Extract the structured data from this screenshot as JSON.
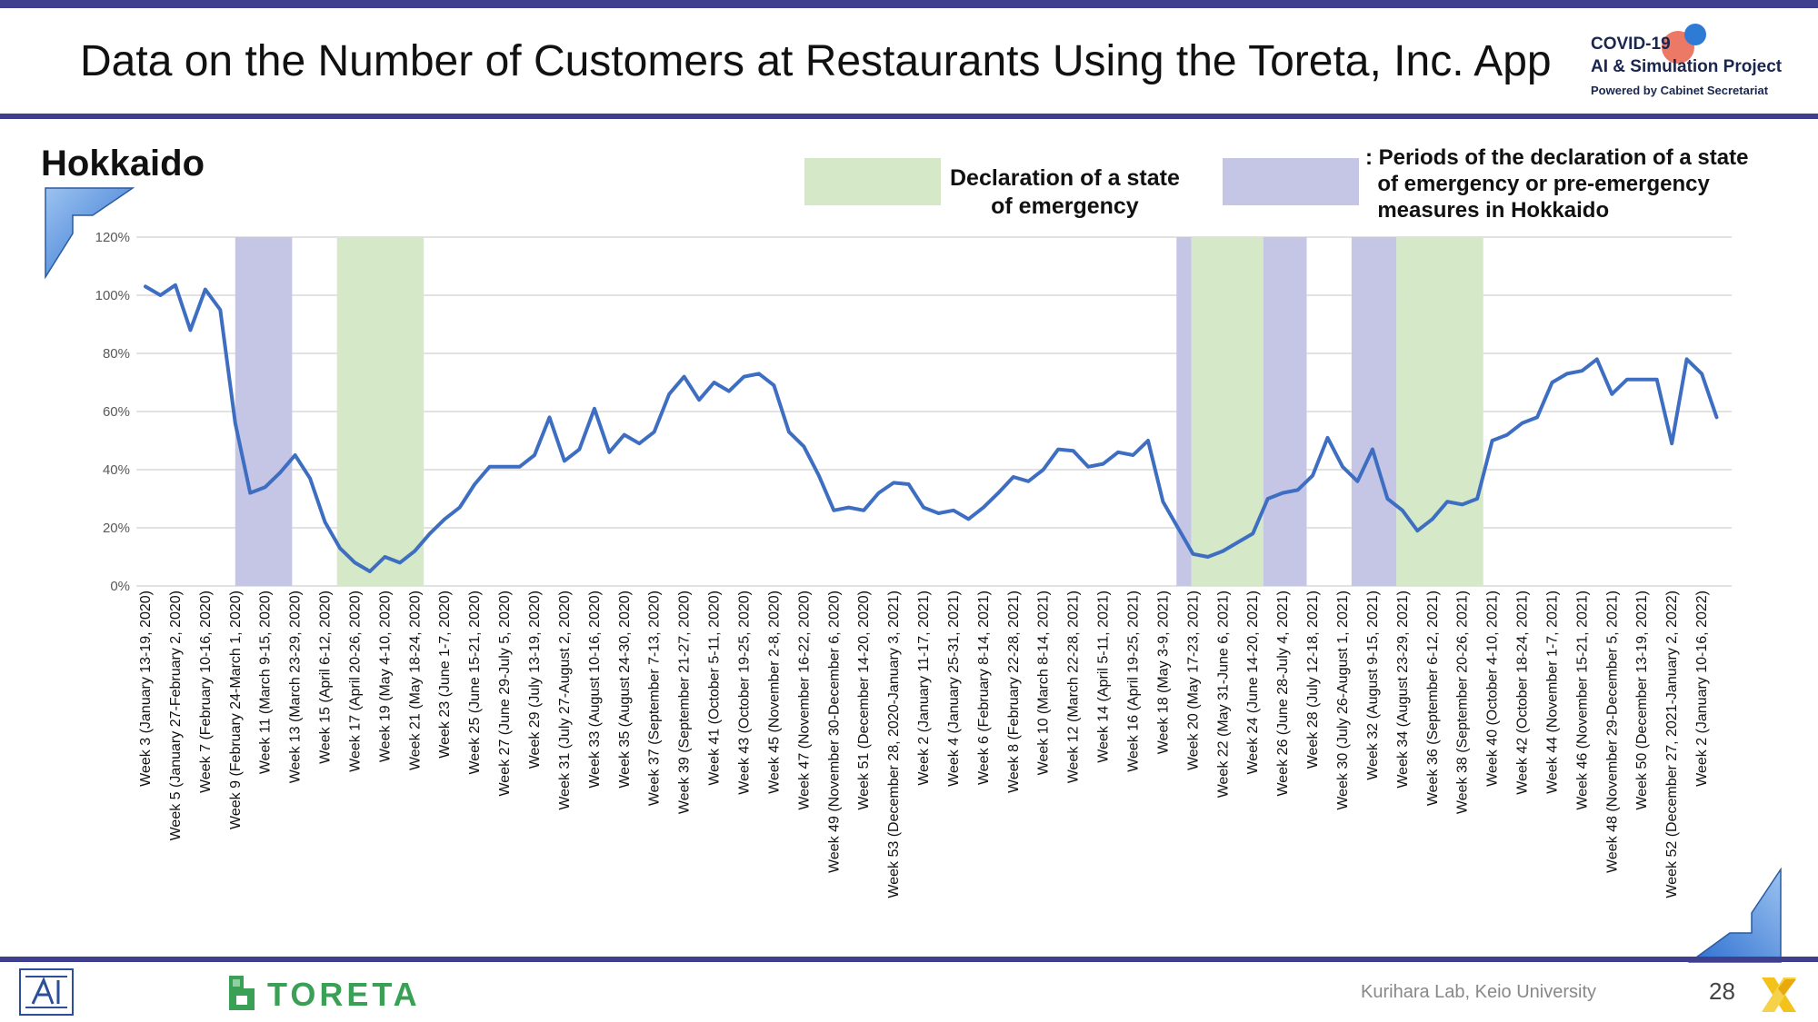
{
  "header": {
    "title": "Data on the Number of Customers at Restaurants Using the Toreta, Inc. App",
    "logo_line1": "COVID-19",
    "logo_line2": "AI & Simulation Project",
    "logo_line3": "Powered by Cabinet Secretariat"
  },
  "region": "Hokkaido",
  "legend": {
    "emergency": "Declaration of a state\nof emergency",
    "pre_emergency": ": Periods of the declaration of a state\n  of emergency or pre-emergency\n  measures in Hokkaido",
    "emergency_color": "#d5e8c8",
    "pre_emergency_color": "#c5c6e6"
  },
  "footer": {
    "toreta": "TORETA",
    "credit": "Kurihara Lab, Keio University",
    "page_number": "28"
  },
  "colors": {
    "line": "#3e6ec2",
    "accent": "#3e3f8e"
  },
  "chart_data": {
    "type": "line",
    "ylim": [
      0,
      1.2
    ],
    "yticks": [
      0,
      0.2,
      0.4,
      0.6,
      0.8,
      1.0,
      1.2
    ],
    "ytick_labels": [
      "0%",
      "20%",
      "40%",
      "60%",
      "80%",
      "100%",
      "120%"
    ],
    "grid": true,
    "x_index_range": [
      0,
      106
    ],
    "xtick_labels": [
      {
        "i": 0,
        "label": "Week 3 (January 13-19, 2020)"
      },
      {
        "i": 2,
        "label": "Week 5 (January 27-February 2, 2020)"
      },
      {
        "i": 4,
        "label": "Week 7 (February 10-16, 2020)"
      },
      {
        "i": 6,
        "label": "Week 9 (February 24-March 1, 2020)"
      },
      {
        "i": 8,
        "label": "Week 11 (March 9-15, 2020)"
      },
      {
        "i": 10,
        "label": "Week 13 (March 23-29, 2020)"
      },
      {
        "i": 12,
        "label": "Week 15 (April 6-12, 2020)"
      },
      {
        "i": 14,
        "label": "Week 17 (April 20-26, 2020)"
      },
      {
        "i": 16,
        "label": "Week 19 (May 4-10, 2020)"
      },
      {
        "i": 18,
        "label": "Week 21 (May 18-24, 2020)"
      },
      {
        "i": 20,
        "label": "Week 23 (June 1-7, 2020)"
      },
      {
        "i": 22,
        "label": "Week 25 (June 15-21, 2020)"
      },
      {
        "i": 24,
        "label": "Week 27 (June 29-July 5, 2020)"
      },
      {
        "i": 26,
        "label": "Week 29 (July 13-19, 2020)"
      },
      {
        "i": 28,
        "label": "Week 31 (July 27-August 2, 2020)"
      },
      {
        "i": 30,
        "label": "Week 33 (August 10-16, 2020)"
      },
      {
        "i": 32,
        "label": "Week 35 (August 24-30, 2020)"
      },
      {
        "i": 34,
        "label": "Week 37 (September 7-13, 2020)"
      },
      {
        "i": 36,
        "label": "Week 39 (September 21-27, 2020)"
      },
      {
        "i": 38,
        "label": "Week 41 (October 5-11, 2020)"
      },
      {
        "i": 40,
        "label": "Week 43 (October 19-25, 2020)"
      },
      {
        "i": 42,
        "label": "Week 45 (November 2-8, 2020)"
      },
      {
        "i": 44,
        "label": "Week 47 (November 16-22, 2020)"
      },
      {
        "i": 46,
        "label": "Week 49 (November 30-December 6, 2020)"
      },
      {
        "i": 48,
        "label": "Week 51 (December 14-20, 2020)"
      },
      {
        "i": 50,
        "label": "Week 53 (December 28, 2020-January 3, 2021)"
      },
      {
        "i": 52,
        "label": "Week 2 (January 11-17, 2021)"
      },
      {
        "i": 54,
        "label": "Week 4 (January 25-31, 2021)"
      },
      {
        "i": 56,
        "label": "Week 6 (February 8-14, 2021)"
      },
      {
        "i": 58,
        "label": "Week 8 (February 22-28, 2021)"
      },
      {
        "i": 60,
        "label": "Week 10 (March 8-14, 2021)"
      },
      {
        "i": 62,
        "label": "Week 12 (March 22-28, 2021)"
      },
      {
        "i": 64,
        "label": "Week 14 (April 5-11, 2021)"
      },
      {
        "i": 66,
        "label": "Week 16 (April 19-25, 2021)"
      },
      {
        "i": 68,
        "label": "Week 18 (May 3-9, 2021)"
      },
      {
        "i": 70,
        "label": "Week 20 (May 17-23, 2021)"
      },
      {
        "i": 72,
        "label": "Week 22 (May 31-June 6, 2021)"
      },
      {
        "i": 74,
        "label": "Week 24 (June 14-20, 2021)"
      },
      {
        "i": 76,
        "label": "Week 26 (June 28-July 4, 2021)"
      },
      {
        "i": 78,
        "label": "Week 28 (July 12-18, 2021)"
      },
      {
        "i": 80,
        "label": "Week 30 (July 26-August 1, 2021)"
      },
      {
        "i": 82,
        "label": "Week 32 (August 9-15, 2021)"
      },
      {
        "i": 84,
        "label": "Week 34 (August 23-29, 2021)"
      },
      {
        "i": 86,
        "label": "Week 36 (September 6-12, 2021)"
      },
      {
        "i": 88,
        "label": "Week 38 (September 20-26, 2021)"
      },
      {
        "i": 90,
        "label": "Week 40 (October 4-10, 2021)"
      },
      {
        "i": 92,
        "label": "Week 42 (October 18-24, 2021)"
      },
      {
        "i": 94,
        "label": "Week 44 (November 1-7, 2021)"
      },
      {
        "i": 96,
        "label": "Week 46 (November 15-21, 2021)"
      },
      {
        "i": 98,
        "label": "Week 48 (November 29-December 5, 2021)"
      },
      {
        "i": 100,
        "label": "Week 50 (December 13-19, 2021)"
      },
      {
        "i": 102,
        "label": "Week 52 (December 27, 2021-January 2, 2022)"
      },
      {
        "i": 104,
        "label": "Week 2 (January 10-16, 2022)"
      }
    ],
    "series": [
      {
        "values": [
          1.03,
          1.0,
          1.035,
          0.88,
          1.02,
          0.95,
          0.56,
          0.32,
          0.34,
          0.39,
          0.45,
          0.37,
          0.22,
          0.13,
          0.08,
          0.05,
          0.1,
          0.08,
          0.12,
          0.18,
          0.23,
          0.27,
          0.35,
          0.41,
          0.41,
          0.41,
          0.45,
          0.58,
          0.43,
          0.47,
          0.61,
          0.46,
          0.52,
          0.49,
          0.53,
          0.66,
          0.72,
          0.64,
          0.7,
          0.67,
          0.72,
          0.73,
          0.69,
          0.53,
          0.48,
          0.38,
          0.26,
          0.27,
          0.26,
          0.32,
          0.355,
          0.35,
          0.27,
          0.25,
          0.26,
          0.23,
          0.27,
          0.32,
          0.375,
          0.36,
          0.4,
          0.47,
          0.465,
          0.41,
          0.42,
          0.46,
          0.45,
          0.5,
          0.29,
          0.2,
          0.11,
          0.1,
          0.12,
          0.15,
          0.18,
          0.3,
          0.32,
          0.33,
          0.38,
          0.51,
          0.41,
          0.36,
          0.47,
          0.3,
          0.26,
          0.19,
          0.23,
          0.29,
          0.28,
          0.3,
          0.5,
          0.52,
          0.56,
          0.58,
          0.7,
          0.73,
          0.74,
          0.78,
          0.66,
          0.71,
          0.71,
          0.71,
          0.49,
          0.78,
          0.73,
          0.58
        ]
      }
    ],
    "shaded_periods": [
      {
        "type": "pre_emergency",
        "start": 6.0,
        "end": 9.8
      },
      {
        "type": "emergency",
        "start": 12.8,
        "end": 18.6
      },
      {
        "type": "pre_emergency",
        "start": 68.9,
        "end": 69.9
      },
      {
        "type": "emergency",
        "start": 69.9,
        "end": 74.7
      },
      {
        "type": "pre_emergency",
        "start": 74.7,
        "end": 77.6
      },
      {
        "type": "pre_emergency",
        "start": 80.6,
        "end": 83.6
      },
      {
        "type": "emergency",
        "start": 83.6,
        "end": 89.4
      }
    ]
  }
}
